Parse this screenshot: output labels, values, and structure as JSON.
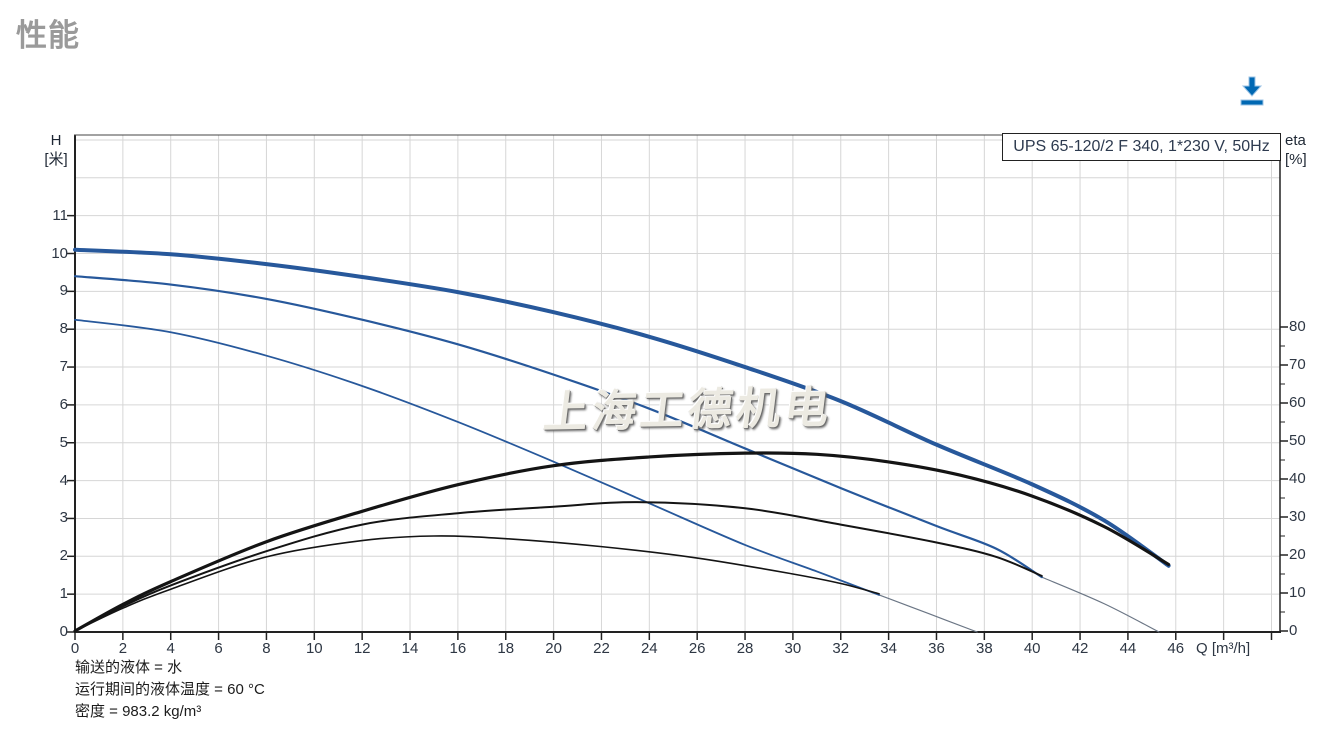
{
  "page": {
    "title": "性能"
  },
  "toolbar": {
    "download_icon": "download-icon",
    "download_color": "#0068b3"
  },
  "watermark": {
    "text": "上海工德机电"
  },
  "footnotes": [
    "输送的液体 = 水",
    "运行期间的液体温度 = 60 °C",
    "密度 = 983.2 kg/m³"
  ],
  "colors": {
    "curve_blue": "#27589b",
    "curve_black": "#141414",
    "extension_gray": "#6b7685",
    "grid": "#d6d6d6",
    "axis": "#222222",
    "tick_label": "#2e3744",
    "title_gray": "#9a9a9a"
  },
  "chart_data": {
    "type": "line",
    "title_box": "UPS 65-120/2 F 340, 1*230 V, 50Hz",
    "x_axis": {
      "label": "Q [m³/h]",
      "ticks": [
        0,
        2,
        4,
        6,
        8,
        10,
        12,
        14,
        16,
        18,
        20,
        22,
        24,
        26,
        28,
        30,
        32,
        34,
        36,
        38,
        40,
        42,
        44,
        46
      ],
      "grid_step": 2,
      "grid_max": 50,
      "range": [
        0,
        50.4
      ]
    },
    "y_axis_left": {
      "label_lines": [
        "H",
        "[米]"
      ],
      "ticks": [
        0,
        1,
        2,
        3,
        4,
        5,
        6,
        7,
        8,
        9,
        10,
        11
      ],
      "grid_max": 13,
      "range": [
        0,
        13.1
      ]
    },
    "y_axis_right": {
      "label_lines": [
        "eta",
        "[%]"
      ],
      "ticks": [
        0,
        10,
        20,
        30,
        40,
        50,
        60,
        70,
        80
      ],
      "minor_step": 5,
      "minor_max": 75,
      "range": [
        0,
        80
      ]
    },
    "series": [
      {
        "name": "head-curve-max-speed",
        "axis": "H",
        "color": "#27589b",
        "width": 4,
        "points": [
          [
            0,
            10.1
          ],
          [
            4,
            9.98
          ],
          [
            8,
            9.72
          ],
          [
            12,
            9.38
          ],
          [
            16,
            8.98
          ],
          [
            20,
            8.45
          ],
          [
            24,
            7.8
          ],
          [
            28,
            7.0
          ],
          [
            32,
            6.1
          ],
          [
            36,
            4.95
          ],
          [
            40,
            3.9
          ],
          [
            43,
            2.95
          ],
          [
            45.7,
            1.75
          ]
        ]
      },
      {
        "name": "head-curve-mid-speed",
        "axis": "H",
        "color": "#27589b",
        "width": 2.2,
        "points": [
          [
            0,
            9.4
          ],
          [
            4,
            9.18
          ],
          [
            8,
            8.8
          ],
          [
            12,
            8.25
          ],
          [
            16,
            7.6
          ],
          [
            20,
            6.8
          ],
          [
            24,
            5.9
          ],
          [
            28,
            4.85
          ],
          [
            32,
            3.8
          ],
          [
            36,
            2.8
          ],
          [
            38.5,
            2.2
          ],
          [
            40.4,
            1.45
          ]
        ]
      },
      {
        "name": "head-curve-mid-extension",
        "axis": "H",
        "color": "#6b7685",
        "width": 1.2,
        "points": [
          [
            40.4,
            1.45
          ],
          [
            43,
            0.75
          ],
          [
            45.3,
            0
          ]
        ]
      },
      {
        "name": "head-curve-min-speed",
        "axis": "H",
        "color": "#27589b",
        "width": 1.8,
        "points": [
          [
            0,
            8.25
          ],
          [
            4,
            7.92
          ],
          [
            8,
            7.3
          ],
          [
            12,
            6.5
          ],
          [
            16,
            5.55
          ],
          [
            20,
            4.5
          ],
          [
            24,
            3.4
          ],
          [
            28,
            2.3
          ],
          [
            31,
            1.6
          ],
          [
            33.6,
            0.98
          ]
        ]
      },
      {
        "name": "head-curve-min-extension",
        "axis": "H",
        "color": "#6b7685",
        "width": 1.2,
        "points": [
          [
            33.6,
            0.98
          ],
          [
            35.7,
            0.48
          ],
          [
            37.7,
            0
          ]
        ]
      },
      {
        "name": "eta-curve-max-speed",
        "axis": "eta",
        "color": "#141414",
        "width": 3.2,
        "points": [
          [
            0,
            0
          ],
          [
            2,
            7
          ],
          [
            4,
            13
          ],
          [
            8,
            23.5
          ],
          [
            12,
            31.5
          ],
          [
            16,
            38.5
          ],
          [
            20,
            43.5
          ],
          [
            24,
            45.8
          ],
          [
            28,
            46.8
          ],
          [
            31,
            46.5
          ],
          [
            34,
            44.5
          ],
          [
            37,
            41
          ],
          [
            40,
            35.5
          ],
          [
            43,
            27.5
          ],
          [
            45.7,
            17.5
          ]
        ]
      },
      {
        "name": "eta-curve-mid-speed",
        "axis": "eta",
        "color": "#141414",
        "width": 2,
        "points": [
          [
            0,
            0
          ],
          [
            2,
            6.5
          ],
          [
            4,
            12
          ],
          [
            8,
            21
          ],
          [
            12,
            28
          ],
          [
            16,
            31
          ],
          [
            20,
            32.7
          ],
          [
            23.5,
            33.9
          ],
          [
            28,
            32.3
          ],
          [
            32,
            28
          ],
          [
            36,
            23.3
          ],
          [
            38.5,
            19.5
          ],
          [
            40.4,
            14.5
          ]
        ]
      },
      {
        "name": "eta-curve-min-speed",
        "axis": "eta",
        "color": "#141414",
        "width": 1.6,
        "points": [
          [
            0,
            0
          ],
          [
            2,
            6
          ],
          [
            4,
            11
          ],
          [
            8,
            19.5
          ],
          [
            12,
            23.8
          ],
          [
            15,
            25
          ],
          [
            18,
            24.3
          ],
          [
            22,
            22.2
          ],
          [
            26,
            19.2
          ],
          [
            30,
            15
          ],
          [
            32,
            12.5
          ],
          [
            33.6,
            9.8
          ]
        ]
      }
    ]
  }
}
